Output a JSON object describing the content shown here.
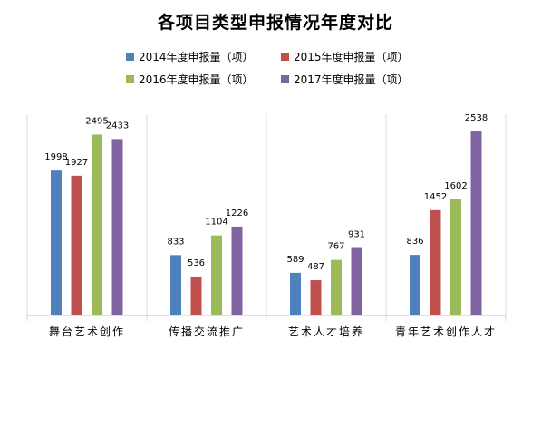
{
  "chart_data": {
    "type": "bar",
    "title": "各项目类型申报情况年度对比",
    "categories": [
      "舞台艺术创作",
      "传播交流推广",
      "艺术人才培养",
      "青年艺术创作人才"
    ],
    "series": [
      {
        "name": "2014年度申报量（项）",
        "values": [
          1998,
          833,
          589,
          836
        ]
      },
      {
        "name": "2015年度申报量（项）",
        "values": [
          1927,
          536,
          487,
          1452
        ]
      },
      {
        "name": "2016年度申报量（项）",
        "values": [
          2495,
          1104,
          767,
          1602
        ]
      },
      {
        "name": "2017年度申报量（项）",
        "values": [
          2433,
          1226,
          931,
          2538
        ]
      }
    ],
    "data_labels": [
      [
        "1998",
        "833",
        "589",
        "836"
      ],
      [
        "1927",
        "536",
        "487",
        "1452"
      ],
      [
        "2495",
        "1104",
        "767",
        "1602"
      ],
      [
        "2433",
        "1226",
        "931",
        "2538"
      ]
    ],
    "xlabel": "",
    "ylabel": "",
    "ylim": [
      0,
      2800
    ],
    "grid": false,
    "legend_position": "top",
    "colors": [
      "#4F81BD",
      "#C0504D",
      "#9BBB59",
      "#8064A2"
    ]
  }
}
